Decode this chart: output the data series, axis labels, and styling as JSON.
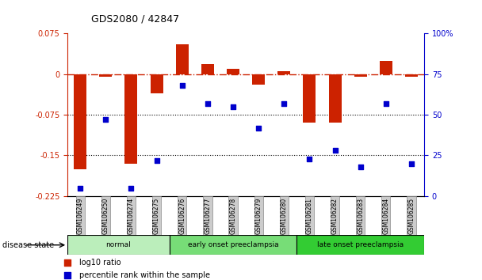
{
  "title": "GDS2080 / 42847",
  "samples": [
    "GSM106249",
    "GSM106250",
    "GSM106274",
    "GSM106275",
    "GSM106276",
    "GSM106277",
    "GSM106278",
    "GSM106279",
    "GSM106280",
    "GSM106281",
    "GSM106282",
    "GSM106283",
    "GSM106284",
    "GSM106285"
  ],
  "log10_ratio": [
    -0.175,
    -0.005,
    -0.165,
    -0.035,
    0.055,
    0.018,
    0.01,
    -0.02,
    0.005,
    -0.09,
    -0.09,
    -0.005,
    0.025,
    -0.005
  ],
  "percentile_rank": [
    5,
    47,
    5,
    22,
    68,
    57,
    55,
    42,
    57,
    23,
    28,
    18,
    57,
    20
  ],
  "groups": [
    {
      "label": "normal",
      "start": 0,
      "end": 4,
      "color": "#bbeebb"
    },
    {
      "label": "early onset preeclampsia",
      "start": 4,
      "end": 9,
      "color": "#77dd77"
    },
    {
      "label": "late onset preeclampsia",
      "start": 9,
      "end": 14,
      "color": "#33cc33"
    }
  ],
  "bar_color": "#cc2200",
  "dot_color": "#0000cc",
  "left_ylim": [
    -0.225,
    0.075
  ],
  "right_ylim": [
    0,
    100
  ],
  "left_yticks": [
    0.075,
    0,
    -0.075,
    -0.15,
    -0.225
  ],
  "right_yticks": [
    100,
    75,
    50,
    25,
    0
  ],
  "dotted_lines": [
    -0.075,
    -0.15
  ],
  "zero_line_color": "#cc2200",
  "background_color": "#ffffff",
  "legend_log10": "log10 ratio",
  "legend_pct": "percentile rank within the sample",
  "disease_state_label": "disease state"
}
